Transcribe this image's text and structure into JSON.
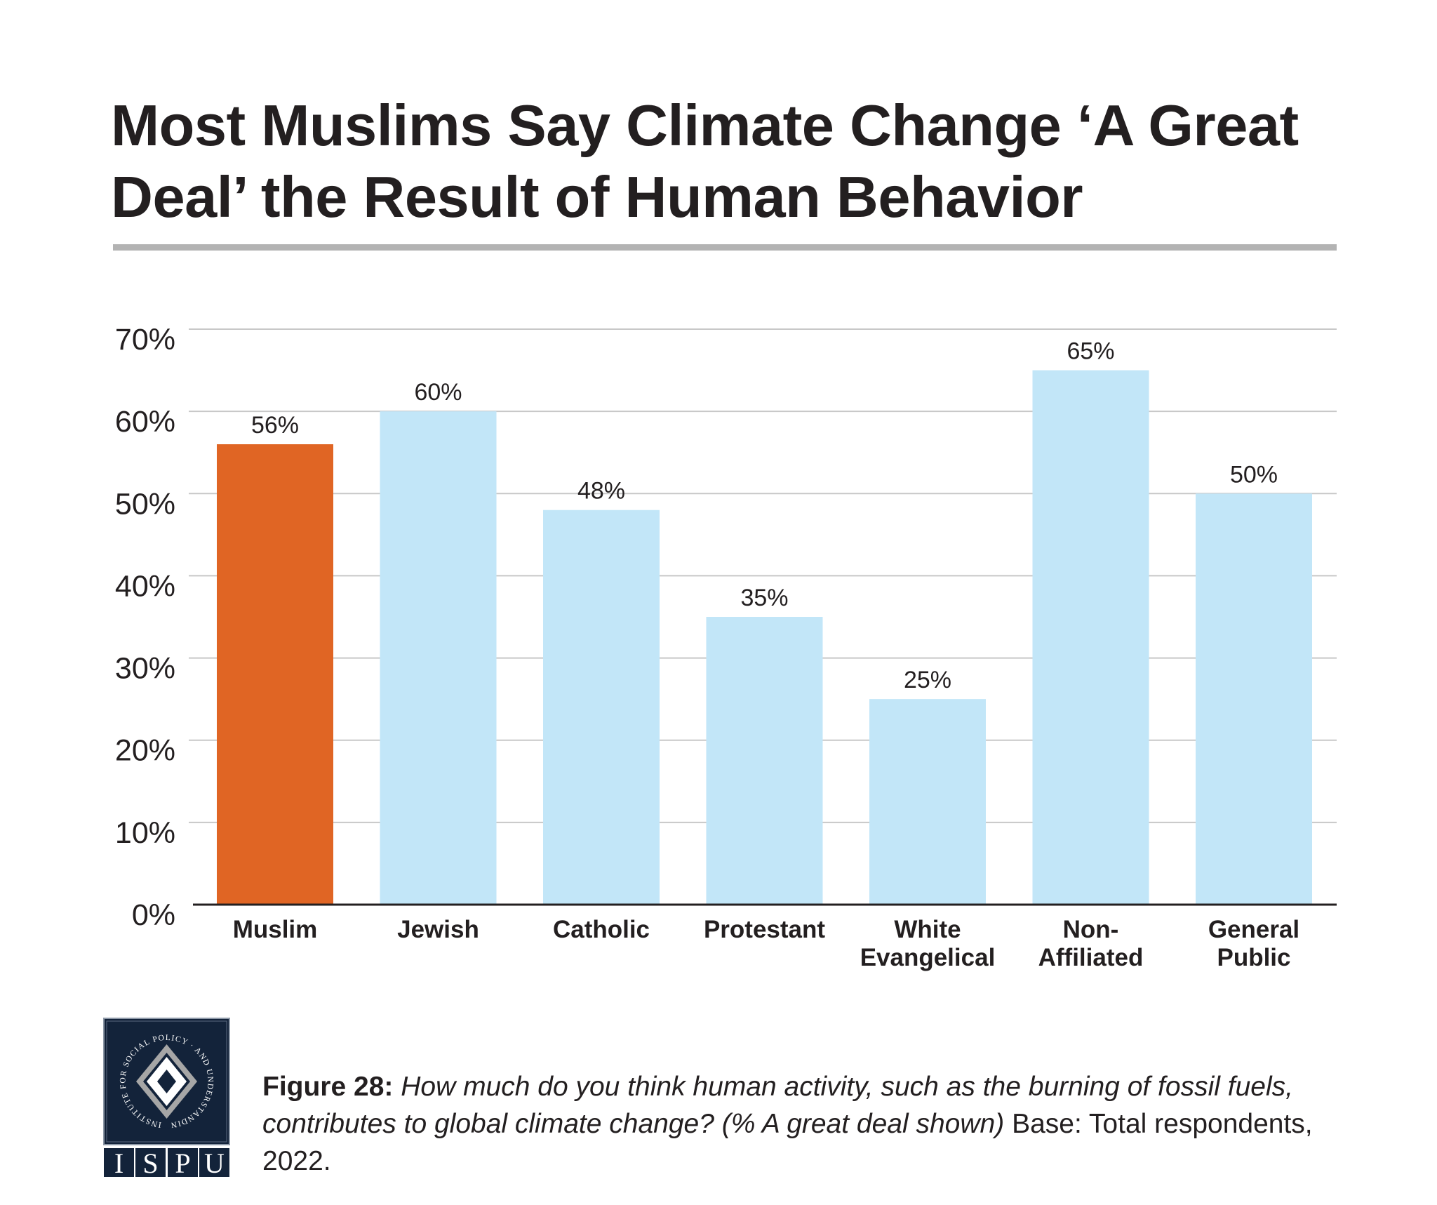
{
  "title": "Most Muslims Say Climate Change ‘A Great Deal’ the Result of Human Behavior",
  "caption": {
    "label": "Figure 28:",
    "question": "How much do you think human activity, such as the burning of fossil fuels, contributes to global climate change? (% A great deal shown)",
    "base": "Base: Total respondents, 2022."
  },
  "logo": {
    "text": "ISPU",
    "ring_text": "INSTITUTE FOR SOCIAL POLICY AND UNDERSTANDING"
  },
  "colors": {
    "highlight": "#E06524",
    "default": "#C2E6F8",
    "grid": "#c8c8c8",
    "axis": "#231f20"
  },
  "chart_data": {
    "type": "bar",
    "categories": [
      "Muslim",
      "Jewish",
      "Catholic",
      "Protestant",
      "White Evangelical",
      "Non-Affiliated",
      "General Public"
    ],
    "category_lines": [
      [
        "Muslim"
      ],
      [
        "Jewish"
      ],
      [
        "Catholic"
      ],
      [
        "Protestant"
      ],
      [
        "White",
        "Evangelical"
      ],
      [
        "Non-",
        "Affiliated"
      ],
      [
        "General",
        "Public"
      ]
    ],
    "values": [
      56,
      60,
      48,
      35,
      25,
      65,
      50
    ],
    "data_labels": [
      "56%",
      "60%",
      "48%",
      "35%",
      "25%",
      "65%",
      "50%"
    ],
    "highlight_index": 0,
    "ylim": [
      0,
      70
    ],
    "yticks": [
      0,
      10,
      20,
      30,
      40,
      50,
      60,
      70
    ],
    "ytick_labels": [
      "0%",
      "10%",
      "20%",
      "30%",
      "40%",
      "50%",
      "60%",
      "70%"
    ],
    "grid": true,
    "xlabel": "",
    "ylabel": ""
  }
}
